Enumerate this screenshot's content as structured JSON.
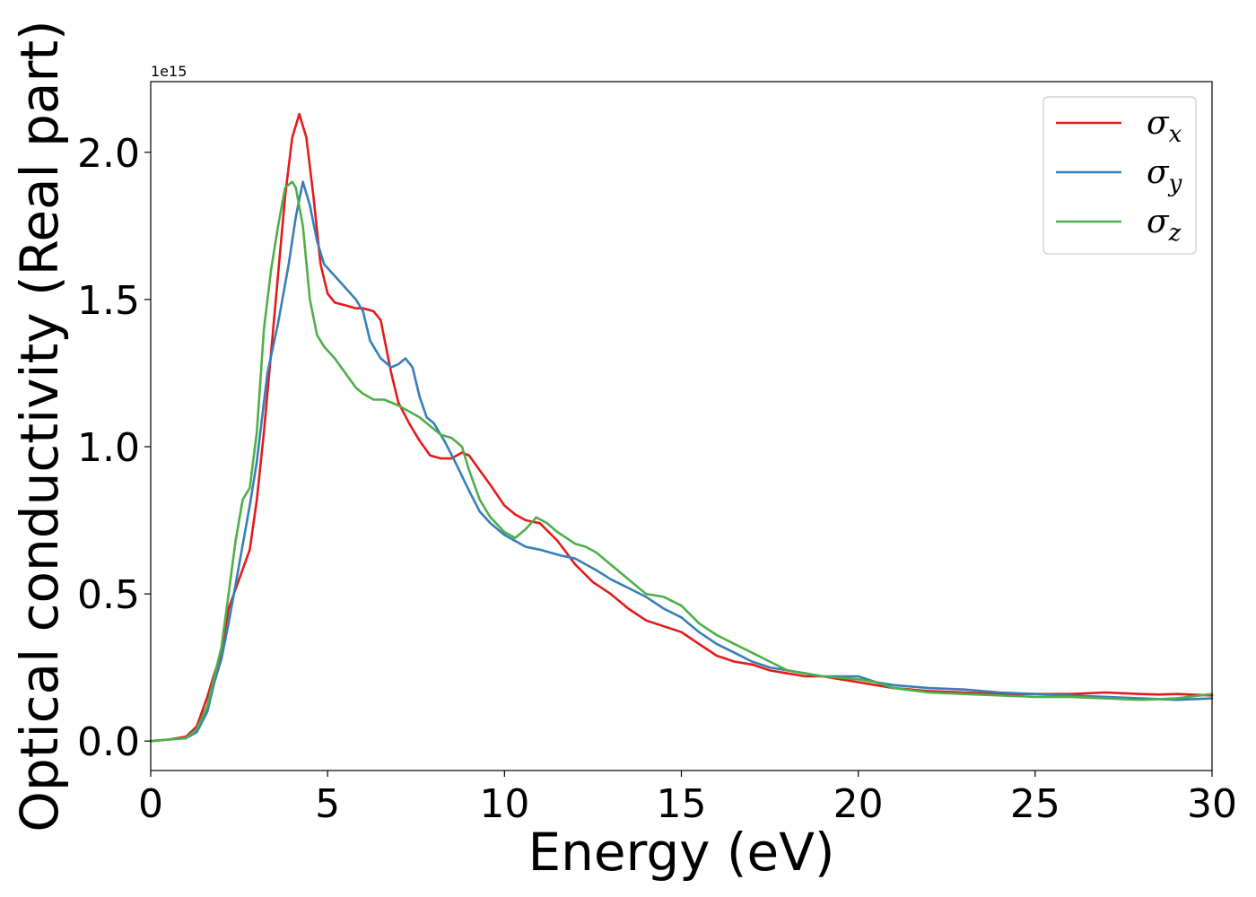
{
  "chart_data": {
    "type": "line",
    "xlabel": "Energy (eV)",
    "ylabel": "Optical conductivity (Real part)",
    "y_offset_text": "1e15",
    "y_scale_factor": 1000000000000000.0,
    "xlim": [
      0,
      30
    ],
    "ylim": [
      -0.1,
      2.24
    ],
    "x_ticks": [
      0,
      5,
      10,
      15,
      20,
      25,
      30
    ],
    "x_tick_labels": [
      "0",
      "5",
      "10",
      "15",
      "20",
      "25",
      "30"
    ],
    "y_ticks": [
      0.0,
      0.5,
      1.0,
      1.5,
      2.0
    ],
    "y_tick_labels": [
      "0.0",
      "0.5",
      "1.0",
      "1.5",
      "2.0"
    ],
    "grid": false,
    "legend_position": "top-right",
    "series": [
      {
        "name": "σ",
        "sub": "x",
        "color": "#e41a1c",
        "x": [
          0,
          0.5,
          1.0,
          1.3,
          1.6,
          1.8,
          2.0,
          2.2,
          2.5,
          2.8,
          3.0,
          3.2,
          3.5,
          3.8,
          4.0,
          4.2,
          4.4,
          4.6,
          4.8,
          5.0,
          5.2,
          5.5,
          5.8,
          6.0,
          6.3,
          6.5,
          6.8,
          7.0,
          7.3,
          7.6,
          7.9,
          8.2,
          8.5,
          8.8,
          9.0,
          9.3,
          9.6,
          10.0,
          10.3,
          10.6,
          11.0,
          11.5,
          12.0,
          12.5,
          13.0,
          13.5,
          14.0,
          14.5,
          15.0,
          15.5,
          16.0,
          16.5,
          17.0,
          17.5,
          18.0,
          18.5,
          19.0,
          19.5,
          20.0,
          20.5,
          21.0,
          22.0,
          23.0,
          24.0,
          25.0,
          26.0,
          27.0,
          28.0,
          28.5,
          29.0,
          30.0
        ],
        "y": [
          0.0,
          0.005,
          0.015,
          0.05,
          0.15,
          0.23,
          0.3,
          0.45,
          0.55,
          0.65,
          0.82,
          1.05,
          1.45,
          1.85,
          2.05,
          2.13,
          2.05,
          1.85,
          1.62,
          1.52,
          1.49,
          1.48,
          1.47,
          1.47,
          1.46,
          1.43,
          1.25,
          1.15,
          1.08,
          1.02,
          0.97,
          0.96,
          0.96,
          0.98,
          0.97,
          0.92,
          0.87,
          0.8,
          0.77,
          0.75,
          0.74,
          0.68,
          0.6,
          0.54,
          0.5,
          0.45,
          0.41,
          0.39,
          0.37,
          0.33,
          0.29,
          0.27,
          0.26,
          0.24,
          0.23,
          0.22,
          0.22,
          0.21,
          0.2,
          0.19,
          0.18,
          0.17,
          0.165,
          0.16,
          0.16,
          0.16,
          0.165,
          0.16,
          0.158,
          0.16,
          0.155
        ]
      },
      {
        "name": "σ",
        "sub": "y",
        "color": "#377eb8",
        "x": [
          0,
          0.5,
          1.0,
          1.3,
          1.6,
          1.8,
          2.0,
          2.2,
          2.5,
          2.8,
          3.0,
          3.3,
          3.6,
          3.9,
          4.1,
          4.3,
          4.5,
          4.7,
          4.9,
          5.2,
          5.5,
          5.8,
          6.0,
          6.2,
          6.5,
          6.8,
          7.0,
          7.2,
          7.4,
          7.6,
          7.8,
          8.0,
          8.3,
          8.6,
          9.0,
          9.3,
          9.6,
          10.0,
          10.3,
          10.6,
          11.0,
          11.3,
          11.6,
          12.0,
          12.3,
          12.6,
          13.0,
          13.5,
          14.0,
          14.5,
          15.0,
          15.5,
          16.0,
          16.5,
          17.0,
          17.5,
          18.0,
          18.5,
          19.0,
          19.5,
          20.0,
          20.5,
          21.0,
          22.0,
          23.0,
          24.0,
          25.0,
          26.0,
          27.0,
          28.0,
          29.0,
          30.0
        ],
        "y": [
          0.0,
          0.005,
          0.01,
          0.03,
          0.1,
          0.2,
          0.28,
          0.4,
          0.6,
          0.8,
          0.95,
          1.25,
          1.42,
          1.62,
          1.78,
          1.9,
          1.82,
          1.7,
          1.62,
          1.58,
          1.54,
          1.5,
          1.46,
          1.36,
          1.3,
          1.27,
          1.28,
          1.3,
          1.27,
          1.17,
          1.1,
          1.08,
          1.02,
          0.95,
          0.85,
          0.78,
          0.74,
          0.7,
          0.68,
          0.66,
          0.65,
          0.64,
          0.63,
          0.62,
          0.6,
          0.58,
          0.55,
          0.52,
          0.49,
          0.45,
          0.42,
          0.37,
          0.33,
          0.3,
          0.27,
          0.25,
          0.24,
          0.23,
          0.22,
          0.22,
          0.22,
          0.2,
          0.19,
          0.18,
          0.175,
          0.165,
          0.16,
          0.155,
          0.15,
          0.145,
          0.14,
          0.145
        ]
      },
      {
        "name": "σ",
        "sub": "z",
        "color": "#4daf4a",
        "x": [
          0,
          0.5,
          1.0,
          1.3,
          1.6,
          1.8,
          2.0,
          2.2,
          2.4,
          2.6,
          2.8,
          3.0,
          3.2,
          3.4,
          3.6,
          3.8,
          4.0,
          4.1,
          4.3,
          4.5,
          4.7,
          4.9,
          5.2,
          5.5,
          5.8,
          6.0,
          6.3,
          6.6,
          7.0,
          7.3,
          7.6,
          7.9,
          8.2,
          8.5,
          8.8,
          9.0,
          9.3,
          9.6,
          10.0,
          10.3,
          10.6,
          10.9,
          11.2,
          11.5,
          12.0,
          12.3,
          12.6,
          13.0,
          13.5,
          14.0,
          14.5,
          15.0,
          15.5,
          16.0,
          16.5,
          17.0,
          17.5,
          18.0,
          18.5,
          19.0,
          19.5,
          20.0,
          20.5,
          21.0,
          22.0,
          23.0,
          24.0,
          25.0,
          26.0,
          27.0,
          28.0,
          29.0,
          30.0
        ],
        "y": [
          0.0,
          0.005,
          0.01,
          0.04,
          0.12,
          0.22,
          0.32,
          0.5,
          0.68,
          0.82,
          0.86,
          1.05,
          1.4,
          1.6,
          1.75,
          1.88,
          1.9,
          1.88,
          1.75,
          1.5,
          1.38,
          1.34,
          1.3,
          1.25,
          1.2,
          1.18,
          1.16,
          1.16,
          1.14,
          1.12,
          1.1,
          1.07,
          1.04,
          1.03,
          1.0,
          0.92,
          0.82,
          0.76,
          0.71,
          0.69,
          0.72,
          0.76,
          0.74,
          0.71,
          0.67,
          0.66,
          0.64,
          0.6,
          0.55,
          0.5,
          0.49,
          0.46,
          0.4,
          0.36,
          0.33,
          0.3,
          0.27,
          0.24,
          0.23,
          0.22,
          0.215,
          0.21,
          0.2,
          0.18,
          0.165,
          0.16,
          0.155,
          0.15,
          0.15,
          0.145,
          0.14,
          0.145,
          0.16
        ]
      }
    ]
  }
}
